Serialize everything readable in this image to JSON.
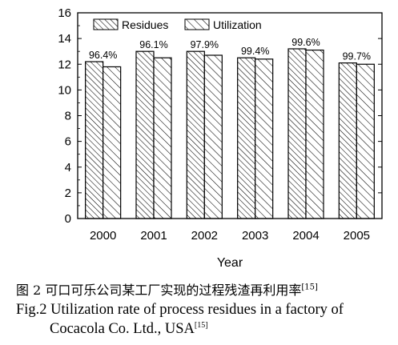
{
  "chart_data": {
    "type": "bar",
    "categories": [
      "2000",
      "2001",
      "2002",
      "2003",
      "2004",
      "2005"
    ],
    "series": [
      {
        "name": "Residues",
        "values": [
          12.2,
          13.0,
          13.0,
          12.5,
          13.2,
          12.1
        ],
        "pattern": "dense-hatch"
      },
      {
        "name": "Utilization",
        "values": [
          11.8,
          12.5,
          12.7,
          12.4,
          13.1,
          12.0
        ],
        "pattern": "sparse-hatch"
      }
    ],
    "bar_labels": [
      "96.4%",
      "96.1%",
      "97.9%",
      "99.4%",
      "99.6%",
      "99.7%"
    ],
    "xlabel": "Year",
    "ylabel": "",
    "ylim": [
      0,
      16
    ],
    "yticks": [
      0,
      2,
      4,
      6,
      8,
      10,
      12,
      14,
      16
    ],
    "grid": false,
    "legend_position": "top-left",
    "colors": {
      "axis": "#000000",
      "bar_fill": "#ffffff",
      "hatch": "#000000"
    }
  },
  "caption": {
    "zh": "图 2  可口可乐公司某工厂实现的过程残渣再利用率",
    "zh_ref": "[15]",
    "en_line1": "Fig.2 Utilization rate of process residues in a factory of",
    "en_line2": "Cocacola Co. Ltd., USA",
    "en_ref": "[15]"
  }
}
